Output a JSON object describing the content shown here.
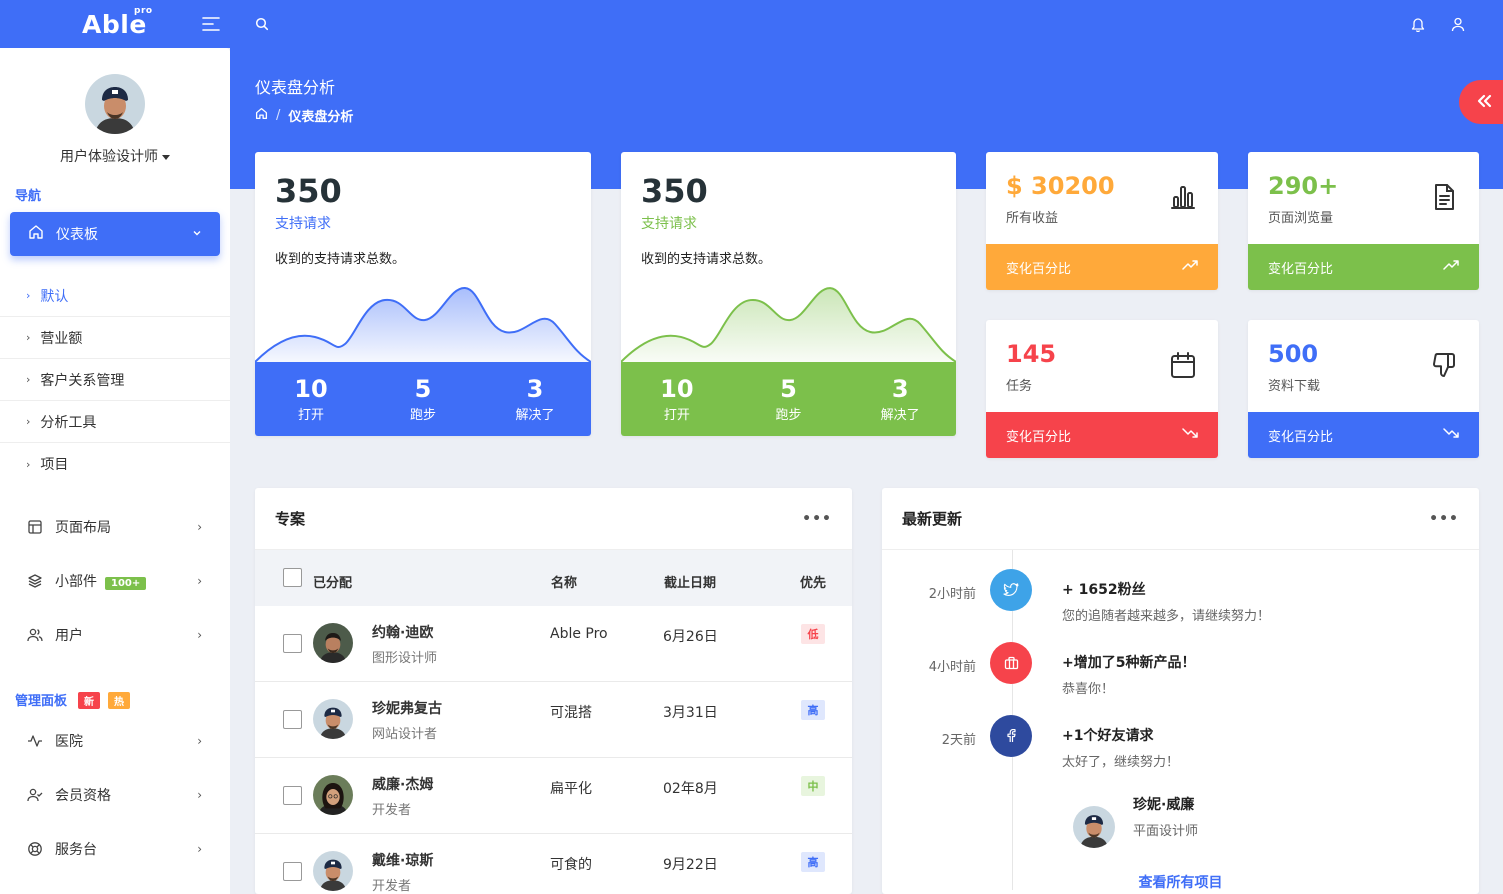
{
  "brand": {
    "logo": "Able",
    "logo_sup": "pro"
  },
  "sidebar": {
    "user_role": "用户体验设计师",
    "nav_title": "导航",
    "active_item": "仪表板",
    "sub_items": [
      "默认",
      "营业额",
      "客户关系管理",
      "分析工具",
      "项目"
    ],
    "menu": [
      {
        "label": "页面布局",
        "icon": "layout-icon"
      },
      {
        "label": "小部件",
        "icon": "layers-icon",
        "badge": "100+"
      },
      {
        "label": "用户",
        "icon": "users-icon"
      }
    ],
    "admin_title": "管理面板",
    "admin_badges": [
      "新",
      "热"
    ],
    "admin_menu": [
      {
        "label": "医院",
        "icon": "activity-icon"
      },
      {
        "label": "会员资格",
        "icon": "user-check-icon"
      },
      {
        "label": "服务台",
        "icon": "lifebuoy-icon"
      }
    ]
  },
  "header": {
    "title": "仪表盘分析",
    "breadcrumb_current": "仪表盘分析"
  },
  "chart_cards": [
    {
      "value": "350",
      "subtitle": "支持请求",
      "desc": "收到的支持请求总数。",
      "color": "#3f6ef7",
      "stats": [
        {
          "n": "10",
          "l": "打开"
        },
        {
          "n": "5",
          "l": "跑步"
        },
        {
          "n": "3",
          "l": "解决了"
        }
      ]
    },
    {
      "value": "350",
      "subtitle": "支持请求",
      "desc": "收到的支持请求总数。",
      "color": "#7cc04b",
      "stats": [
        {
          "n": "10",
          "l": "打开"
        },
        {
          "n": "5",
          "l": "跑步"
        },
        {
          "n": "3",
          "l": "解决了"
        }
      ]
    }
  ],
  "stat_cards": [
    {
      "value": "$ 30200",
      "caption": "所有收益",
      "footer": "变化百分比",
      "color": "#ffa93a",
      "icon": "bar-chart-icon",
      "trend": "up"
    },
    {
      "value": "290+",
      "caption": "页面浏览量",
      "footer": "变化百分比",
      "color": "#7cc04b",
      "icon": "file-text-icon",
      "trend": "up"
    },
    {
      "value": "145",
      "caption": "任务",
      "footer": "变化百分比",
      "color": "#f6434b",
      "icon": "calendar-icon",
      "trend": "down"
    },
    {
      "value": "500",
      "caption": "资料下载",
      "footer": "变化百分比",
      "color": "#3f6ef7",
      "icon": "thumbs-down-icon",
      "trend": "down"
    }
  ],
  "projects": {
    "title": "专案",
    "columns": [
      "已分配",
      "名称",
      "截止日期",
      "优先"
    ],
    "rows": [
      {
        "name": "约翰·迪欧",
        "role": "图形设计师",
        "project": "Able Pro",
        "date": "6月26日",
        "priority": "低",
        "prio_color": "#f6434b",
        "prio_bg": "#fde4e5"
      },
      {
        "name": "珍妮弗复古",
        "role": "网站设计者",
        "project": "可混搭",
        "date": "3月31日",
        "priority": "高",
        "prio_color": "#3f6ef7",
        "prio_bg": "#dfe7fd"
      },
      {
        "name": "威廉·杰姆",
        "role": "开发者",
        "project": "扁平化",
        "date": "02年8月",
        "priority": "中",
        "prio_color": "#7cc04b",
        "prio_bg": "#e8f5de"
      },
      {
        "name": "戴维·琼斯",
        "role": "开发者",
        "project": "可食的",
        "date": "9月22日",
        "priority": "高",
        "prio_color": "#3f6ef7",
        "prio_bg": "#dfe7fd"
      }
    ]
  },
  "updates": {
    "title": "最新更新",
    "items": [
      {
        "time": "2小时前",
        "title": "+ 1652粉丝",
        "desc": "您的追随者越来越多，请继续努力！",
        "icon": "twitter-icon",
        "color": "#3ea3e8"
      },
      {
        "time": "4小时前",
        "title": "+增加了5种新产品！",
        "desc": "恭喜你！",
        "icon": "briefcase-icon",
        "color": "#f6434b"
      },
      {
        "time": "2天前",
        "title": "+1个好友请求",
        "desc": "太好了，继续努力！",
        "icon": "facebook-icon",
        "color": "#2e4a9e"
      }
    ],
    "friend": {
      "name": "珍妮·威廉",
      "role": "平面设计师"
    },
    "view_all": "查看所有项目"
  }
}
